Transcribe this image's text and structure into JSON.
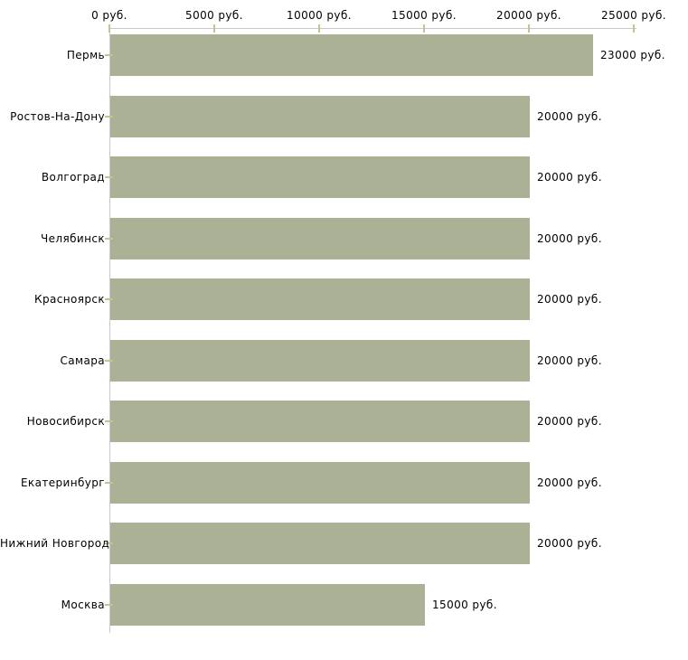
{
  "chart_data": {
    "type": "bar",
    "orientation": "horizontal",
    "title": "",
    "xlabel": "",
    "ylabel": "",
    "categories": [
      "Пермь",
      "Ростов-На-Дону",
      "Волгоград",
      "Челябинск",
      "Красноярск",
      "Самара",
      "Новосибирск",
      "Екатеринбург",
      "Нижний Новгород",
      "Москва"
    ],
    "values": [
      23000,
      20000,
      20000,
      20000,
      20000,
      20000,
      20000,
      20000,
      20000,
      15000
    ],
    "value_labels": [
      "23000 руб.",
      "20000 руб.",
      "20000 руб.",
      "20000 руб.",
      "20000 руб.",
      "20000 руб.",
      "20000 руб.",
      "20000 руб.",
      "20000 руб.",
      "15000 руб."
    ],
    "unit": "руб.",
    "x_ticks": [
      0,
      5000,
      10000,
      15000,
      20000,
      25000
    ],
    "x_tick_labels": [
      "0 руб.",
      "5000 руб.",
      "10000 руб.",
      "15000 руб.",
      "20000 руб.",
      "25000 руб."
    ],
    "xlim": [
      0,
      25000
    ],
    "grid": false,
    "legend": null,
    "colors": {
      "bar": "#aab194",
      "axis": "#c9c9c9",
      "tick": "#c6c293",
      "text": "#000000",
      "background": "#ffffff"
    }
  }
}
